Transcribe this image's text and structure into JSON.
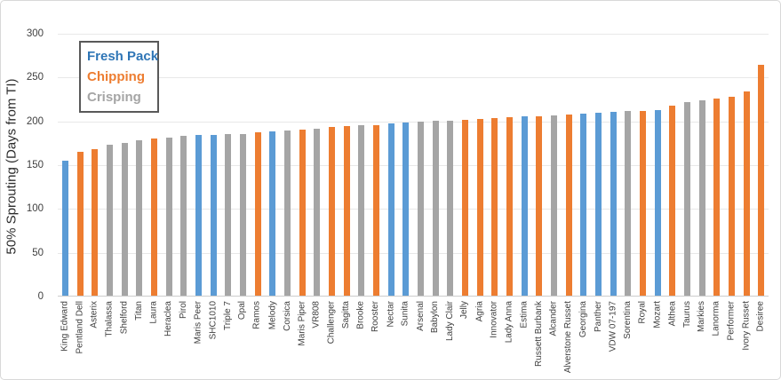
{
  "chart_data": {
    "type": "bar",
    "title": "",
    "ylabel": "50% Sprouting (Days from TI)",
    "xlabel": "",
    "ylim": [
      0,
      300
    ],
    "y_ticks": [
      0,
      50,
      100,
      150,
      200,
      250,
      300
    ],
    "grid": "horizontal",
    "legend_position": "top-left-inside",
    "legend_order": [
      "fresh_pack",
      "chipping",
      "crisping"
    ],
    "groups": {
      "fresh_pack": {
        "label": "Fresh Pack",
        "color": "#5B9BD5",
        "legend_text_color": "#2E75B6"
      },
      "chipping": {
        "label": "Chipping",
        "color": "#ED7D31",
        "legend_text_color": "#ED7D31"
      },
      "crisping": {
        "label": "Crisping",
        "color": "#A5A5A5",
        "legend_text_color": "#A5A5A5"
      }
    },
    "points": [
      {
        "category": "King Edward",
        "value": 155,
        "group": "fresh_pack"
      },
      {
        "category": "Pentland Dell",
        "value": 165,
        "group": "chipping"
      },
      {
        "category": "Asterix",
        "value": 168,
        "group": "chipping"
      },
      {
        "category": "Thalassa",
        "value": 173,
        "group": "crisping"
      },
      {
        "category": "Shelford",
        "value": 175,
        "group": "crisping"
      },
      {
        "category": "Titan",
        "value": 178,
        "group": "crisping"
      },
      {
        "category": "Laura",
        "value": 180,
        "group": "chipping"
      },
      {
        "category": "Heraclea",
        "value": 181,
        "group": "crisping"
      },
      {
        "category": "Pirol",
        "value": 183,
        "group": "crisping"
      },
      {
        "category": "Maris Peer",
        "value": 184,
        "group": "fresh_pack"
      },
      {
        "category": "SHC1010",
        "value": 184,
        "group": "fresh_pack"
      },
      {
        "category": "Triple 7",
        "value": 185,
        "group": "crisping"
      },
      {
        "category": "Opal",
        "value": 185,
        "group": "crisping"
      },
      {
        "category": "Ramos",
        "value": 187,
        "group": "chipping"
      },
      {
        "category": "Melody",
        "value": 189,
        "group": "fresh_pack"
      },
      {
        "category": "Corsica",
        "value": 190,
        "group": "crisping"
      },
      {
        "category": "Maris Piper",
        "value": 191,
        "group": "chipping"
      },
      {
        "category": "VR808",
        "value": 192,
        "group": "crisping"
      },
      {
        "category": "Challenger",
        "value": 194,
        "group": "chipping"
      },
      {
        "category": "Sagitta",
        "value": 195,
        "group": "chipping"
      },
      {
        "category": "Brooke",
        "value": 196,
        "group": "crisping"
      },
      {
        "category": "Rooster",
        "value": 196,
        "group": "chipping"
      },
      {
        "category": "Nectar",
        "value": 198,
        "group": "fresh_pack"
      },
      {
        "category": "Sunita",
        "value": 199,
        "group": "fresh_pack"
      },
      {
        "category": "Arsenal",
        "value": 200,
        "group": "crisping"
      },
      {
        "category": "Babylon",
        "value": 201,
        "group": "crisping"
      },
      {
        "category": "Lady Clair",
        "value": 201,
        "group": "crisping"
      },
      {
        "category": "Jelly",
        "value": 202,
        "group": "chipping"
      },
      {
        "category": "Agria",
        "value": 203,
        "group": "chipping"
      },
      {
        "category": "Innovator",
        "value": 204,
        "group": "chipping"
      },
      {
        "category": "Lady Anna",
        "value": 205,
        "group": "chipping"
      },
      {
        "category": "Estima",
        "value": 206,
        "group": "fresh_pack"
      },
      {
        "category": "Russett Burbank",
        "value": 206,
        "group": "chipping"
      },
      {
        "category": "Alcander",
        "value": 207,
        "group": "crisping"
      },
      {
        "category": "Alverstone Russet",
        "value": 208,
        "group": "chipping"
      },
      {
        "category": "Georgina",
        "value": 209,
        "group": "fresh_pack"
      },
      {
        "category": "Panther",
        "value": 210,
        "group": "fresh_pack"
      },
      {
        "category": "VDW 07-197",
        "value": 211,
        "group": "fresh_pack"
      },
      {
        "category": "Sorentina",
        "value": 212,
        "group": "crisping"
      },
      {
        "category": "Royal",
        "value": 212,
        "group": "chipping"
      },
      {
        "category": "Mozart",
        "value": 213,
        "group": "fresh_pack"
      },
      {
        "category": "Althea",
        "value": 218,
        "group": "chipping"
      },
      {
        "category": "Taurus",
        "value": 222,
        "group": "crisping"
      },
      {
        "category": "Markies",
        "value": 224,
        "group": "crisping"
      },
      {
        "category": "Lanorma",
        "value": 226,
        "group": "chipping"
      },
      {
        "category": "Performer",
        "value": 228,
        "group": "chipping"
      },
      {
        "category": "Ivory Russet",
        "value": 234,
        "group": "chipping"
      },
      {
        "category": "Desiree",
        "value": 265,
        "group": "chipping"
      }
    ]
  }
}
